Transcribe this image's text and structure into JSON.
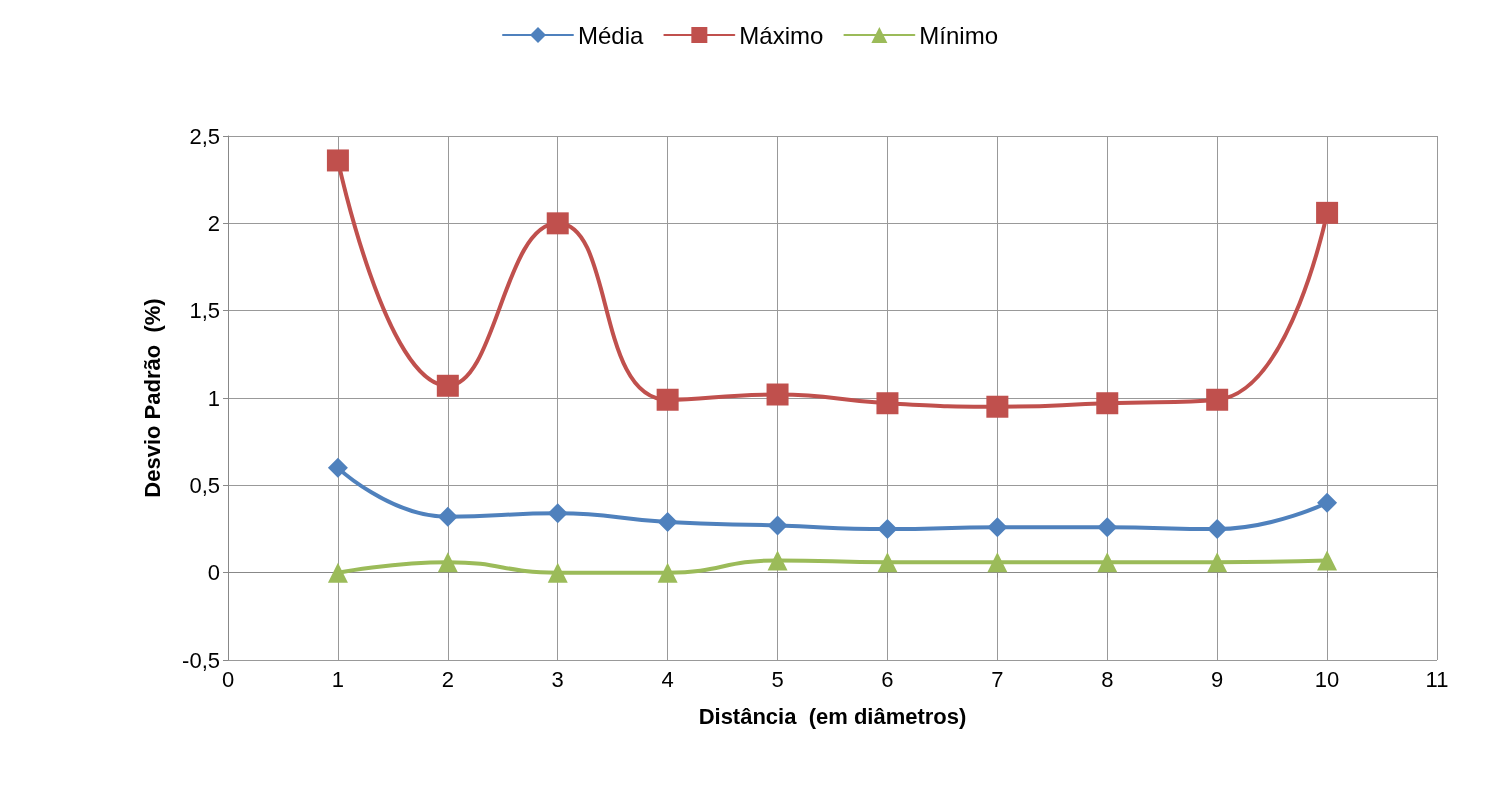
{
  "chart_data": {
    "type": "line",
    "xlabel": "Distância  (em diâmetros)",
    "ylabel": "Desvio Padrão  (%)",
    "x": [
      1,
      2,
      3,
      4,
      5,
      6,
      7,
      8,
      9,
      10
    ],
    "series": [
      {
        "name": "Média",
        "color": "#4f81bd",
        "marker": "diamond",
        "values": [
          0.6,
          0.32,
          0.34,
          0.29,
          0.27,
          0.25,
          0.26,
          0.26,
          0.25,
          0.4
        ]
      },
      {
        "name": "Máximo",
        "color": "#c0504d",
        "marker": "square",
        "values": [
          2.36,
          1.07,
          2.0,
          0.99,
          1.02,
          0.97,
          0.95,
          0.97,
          0.99,
          2.06
        ]
      },
      {
        "name": "Mínimo",
        "color": "#9bbb59",
        "marker": "triangle",
        "values": [
          0,
          0.06,
          0,
          0,
          0.07,
          0.06,
          0.06,
          0.06,
          0.06,
          0.07
        ]
      }
    ],
    "xlim": [
      0,
      11
    ],
    "xticks": [
      0,
      1,
      2,
      3,
      4,
      5,
      6,
      7,
      8,
      9,
      10,
      11
    ],
    "ylim": [
      -0.5,
      2.5
    ],
    "yticks": [
      {
        "value": -0.5,
        "label": "-0,5"
      },
      0,
      {
        "value": 0.5,
        "label": "0,5"
      },
      1,
      {
        "value": 1.5,
        "label": "1,5"
      },
      2,
      {
        "value": 2.5,
        "label": "2,5"
      }
    ],
    "grid": true,
    "legend": "top",
    "line_style": "solid"
  }
}
